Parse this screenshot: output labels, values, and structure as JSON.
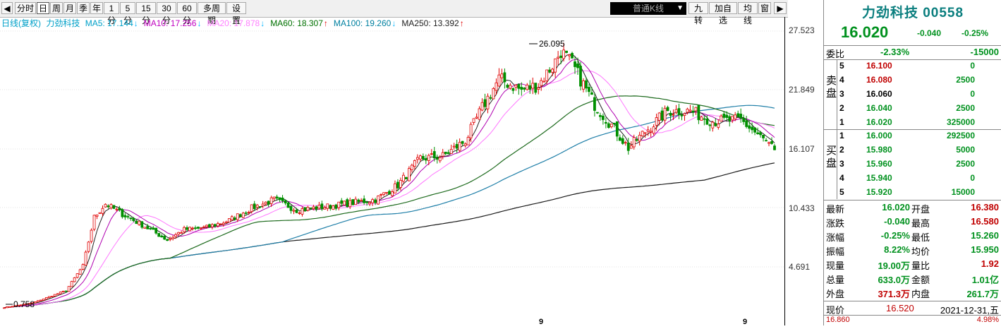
{
  "toolbar": {
    "buttons": [
      "分时",
      "日",
      "周",
      "月",
      "季",
      "年",
      "1分",
      "5分",
      "15分",
      "30分",
      "60分",
      "多周期",
      "设置"
    ],
    "active": "日",
    "combo_value": "普通K线",
    "right_buttons": [
      "九转",
      "加自选",
      "均线",
      "窗"
    ]
  },
  "legend": {
    "prefix": "日线(复权)",
    "stock": "力劲科技",
    "mas": [
      {
        "label": "MA5: 17.144",
        "arrow": "↓",
        "arrow_color": "#00b4ff",
        "color": "#00a0c8"
      },
      {
        "label": "MA10: 17.256",
        "arrow": "↓",
        "arrow_color": "#00b4ff",
        "color": "#c000c0"
      },
      {
        "label": "MA20: 17.878",
        "arrow": "↓",
        "arrow_color": "#00b4ff",
        "color": "#ff80ff"
      },
      {
        "label": "MA60: 18.307",
        "arrow": "↑",
        "arrow_color": "#e00000",
        "color": "#007000"
      },
      {
        "label": "MA100: 19.260",
        "arrow": "↓",
        "arrow_color": "#00b4ff",
        "color": "#0080a0"
      },
      {
        "label": "MA250: 13.392",
        "arrow": "↑",
        "arrow_color": "#e00000",
        "color": "#222222"
      }
    ]
  },
  "price_axis": {
    "ticks": [
      "27.523",
      "21.849",
      "16.107",
      "10.433",
      "4.691"
    ]
  },
  "annotations": {
    "high": "26.095",
    "low": "0.758"
  },
  "bottom_marker": "9",
  "chart_data": {
    "type": "line",
    "price_ticks": [
      27.523,
      21.849,
      16.107,
      10.433,
      4.691
    ],
    "high_label": 26.095,
    "low_label": 0.758,
    "ma_values": {
      "MA5": 17.144,
      "MA10": 17.256,
      "MA20": 17.878,
      "MA60": 18.307,
      "MA100": 19.26,
      "MA250": 13.392
    }
  },
  "panel": {
    "title": "力劲科技 00558",
    "last": "16.020",
    "change": "-0.040",
    "change_pct": "-0.25%",
    "weibi_label": "委比",
    "weibi_pct": "-2.33%",
    "weibi_val": "-15000",
    "sell_label": "卖盘",
    "buy_label": "买盘",
    "sell": [
      {
        "lvl": "5",
        "price": "16.100",
        "vol": "0",
        "pc": "red"
      },
      {
        "lvl": "4",
        "price": "16.080",
        "vol": "2500",
        "pc": "red"
      },
      {
        "lvl": "3",
        "price": "16.060",
        "vol": "0",
        "pc": "blk"
      },
      {
        "lvl": "2",
        "price": "16.040",
        "vol": "2500",
        "pc": "grn"
      },
      {
        "lvl": "1",
        "price": "16.020",
        "vol": "325000",
        "pc": "grn"
      }
    ],
    "buy": [
      {
        "lvl": "1",
        "price": "16.000",
        "vol": "292500",
        "pc": "grn"
      },
      {
        "lvl": "2",
        "price": "15.980",
        "vol": "5000",
        "pc": "grn"
      },
      {
        "lvl": "3",
        "price": "15.960",
        "vol": "2500",
        "pc": "grn"
      },
      {
        "lvl": "4",
        "price": "15.940",
        "vol": "0",
        "pc": "grn"
      },
      {
        "lvl": "5",
        "price": "15.920",
        "vol": "15000",
        "pc": "grn"
      }
    ],
    "stats": [
      {
        "l1": "最新",
        "v1": "16.020",
        "c1": "grn",
        "l2": "开盘",
        "v2": "16.380",
        "c2": "red"
      },
      {
        "l1": "涨跌",
        "v1": "-0.040",
        "c1": "grn",
        "l2": "最高",
        "v2": "16.580",
        "c2": "red"
      },
      {
        "l1": "涨幅",
        "v1": "-0.25%",
        "c1": "grn",
        "l2": "最低",
        "v2": "15.260",
        "c2": "grn"
      },
      {
        "l1": "振幅",
        "v1": "8.22%",
        "c1": "grn",
        "l2": "均价",
        "v2": "15.950",
        "c2": "grn"
      },
      {
        "l1": "现量",
        "v1": "19.00万",
        "c1": "grn",
        "l2": "量比",
        "v2": "1.92",
        "c2": "red"
      },
      {
        "l1": "总量",
        "v1": "633.0万",
        "c1": "grn",
        "l2": "金额",
        "v2": "1.01亿",
        "c2": "grn"
      },
      {
        "l1": "外盘",
        "v1": "371.3万",
        "c1": "red",
        "l2": "内盘",
        "v2": "261.7万",
        "c2": "grn"
      }
    ],
    "xianjia_label": "现价",
    "xianjia": "16.520",
    "date": "2021-12-31,五",
    "bottom_price": "16.860",
    "bottom_pct": "4.98%"
  }
}
